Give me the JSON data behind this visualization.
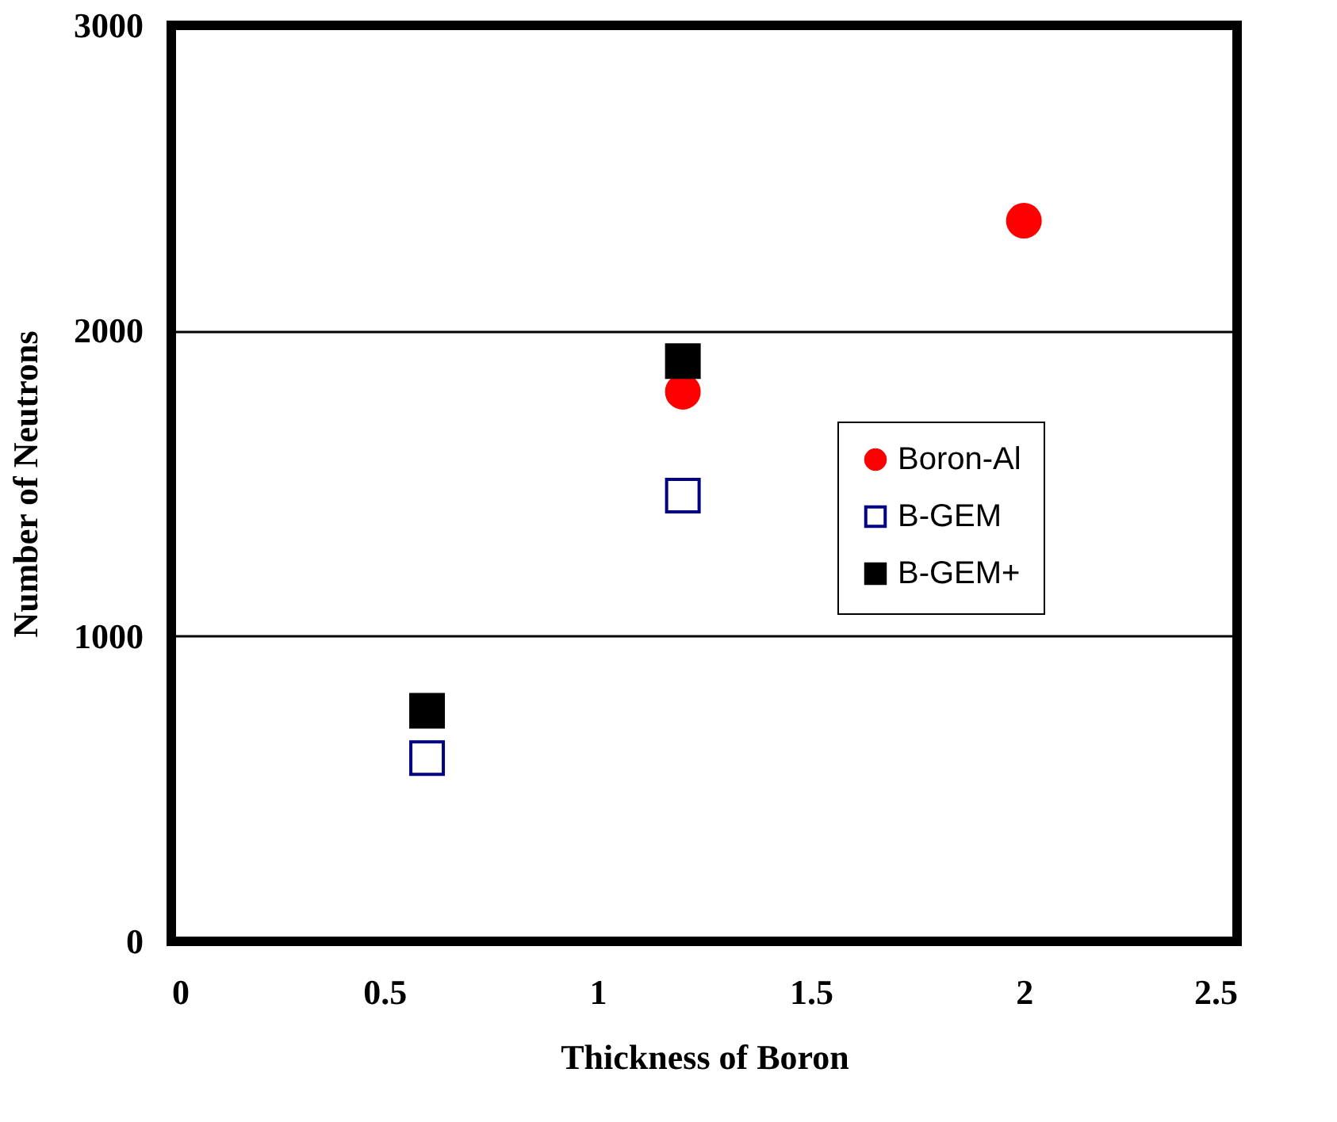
{
  "chart_data": {
    "type": "scatter",
    "xlabel": "Thickness of Boron",
    "ylabel": "Number of Neutrons",
    "xlim": [
      0,
      2.5
    ],
    "xticks": [
      0,
      0.5,
      1,
      1.5,
      2,
      2.5
    ],
    "ylim": [
      0,
      3000
    ],
    "yticks": [
      0,
      1000,
      2000,
      3000
    ],
    "grid": "y",
    "legend": "right",
    "series": [
      {
        "name": "Boron-Al",
        "color": "#ff0000",
        "marker": "circle",
        "x": [
          1.2,
          2.0
        ],
        "values": [
          1800,
          2360
        ]
      },
      {
        "name": "B-GEM",
        "color": "#000080",
        "marker": "square-open",
        "x": [
          0.6,
          1.2
        ],
        "values": [
          600,
          1460
        ]
      },
      {
        "name": "B-GEM+",
        "color": "#000000",
        "marker": "square",
        "x": [
          0.6,
          1.2
        ],
        "values": [
          755,
          1900
        ]
      }
    ]
  }
}
